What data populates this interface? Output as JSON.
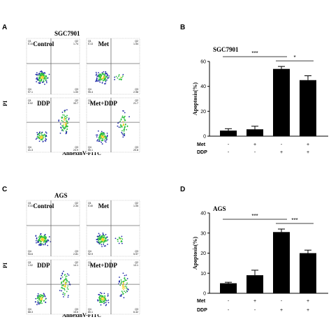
{
  "colors": {
    "bar": "#000000",
    "gate": "#6b6b6b",
    "dense": "#2bbf3e",
    "core": "#f2d22e",
    "sparse": "#1f2aa8"
  },
  "flow_panels": [
    {
      "letter": "A",
      "cell_line": "SGC7901",
      "xlabel": "AnnexinV-FITC",
      "ylabel": "PI",
      "plots": [
        {
          "title": "Control",
          "q1": "Q1",
          "q1v": "0.15",
          "q2": "Q2",
          "q2v": "1.74",
          "q4": "Q4",
          "q4v": "97.1",
          "q3": "Q3",
          "q3v": "1.00"
        },
        {
          "title": "Met",
          "q1": "Q1",
          "q1v": "0.13",
          "q2": "Q2",
          "q2v": "1.54",
          "q4": "Q4",
          "q4v": "95.4",
          "q3": "Q3",
          "q3v": "2.98"
        },
        {
          "title": "DDP",
          "q1": "Q1",
          "q1v": "0.02",
          "q2": "Q2",
          "q2v": "33.7",
          "q4": "Q4",
          "q4v": "41.3",
          "q3": "Q3",
          "q3v": "24.9"
        },
        {
          "title": "Met+DDP",
          "q1": "Q1",
          "q1v": "0.21",
          "q2": "Q2",
          "q2v": "21.7",
          "q4": "Q4",
          "q4v": "55.1",
          "q3": "Q3",
          "q3v": "20.8"
        }
      ]
    },
    {
      "letter": "C",
      "cell_line": "AGS",
      "xlabel": "AnnexinV-FITC",
      "ylabel": "PI",
      "plots": [
        {
          "title": "Control",
          "q1": "Q1",
          "q1v": "0.33",
          "q2": "Q2",
          "q2v": "2.34",
          "q4": "Q4",
          "q4v": "94.6",
          "q3": "Q3",
          "q3v": "2.81"
        },
        {
          "title": "Met",
          "q1": "Q1",
          "q1v": "0.40",
          "q2": "Q2",
          "q2v": "1.05",
          "q4": "Q4",
          "q4v": "92.9",
          "q3": "Q3",
          "q3v": "5.97"
        },
        {
          "title": "DDP",
          "q1": "Q1",
          "q1v": "1.02",
          "q2": "Q2",
          "q2v": "14.1",
          "q4": "Q4",
          "q4v": "68.3",
          "q3": "Q3",
          "q3v": "15.6"
        },
        {
          "title": "Met+DDP",
          "q1": "Q1",
          "q1v": "0.61",
          "q2": "Q2",
          "q2v": "13.1",
          "q4": "Q4",
          "q4v": "80.1",
          "q3": "Q3",
          "q3v": "6.42"
        }
      ]
    }
  ],
  "chart_data": [
    {
      "type": "bar",
      "panel": "B",
      "title": "SGC7901",
      "ylabel": "Apoptosis(%)",
      "ylim": [
        0,
        60
      ],
      "yticks": [
        0,
        20,
        40,
        60
      ],
      "values": [
        4.5,
        5.5,
        54,
        45
      ],
      "errors": [
        1.5,
        2.5,
        2,
        3.5
      ],
      "groups": [
        {
          "name": "Met",
          "marks": [
            "-",
            "+",
            "-",
            "+"
          ]
        },
        {
          "name": "DDP",
          "marks": [
            "-",
            "-",
            "+",
            "+"
          ]
        }
      ],
      "significance": [
        {
          "from": 0,
          "to": 2,
          "label": "***"
        },
        {
          "from": 2,
          "to": 3,
          "label": "*"
        }
      ]
    },
    {
      "type": "bar",
      "panel": "D",
      "title": "AGS",
      "ylabel": "Apoptosis(%)",
      "ylim": [
        0,
        40
      ],
      "yticks": [
        0,
        10,
        20,
        30,
        40
      ],
      "values": [
        5,
        9,
        30.5,
        20
      ],
      "errors": [
        0.5,
        2.5,
        1.5,
        1.5
      ],
      "groups": [
        {
          "name": "Met",
          "marks": [
            "-",
            "+",
            "-",
            "+"
          ]
        },
        {
          "name": "DDP",
          "marks": [
            "-",
            "-",
            "+",
            "+"
          ]
        }
      ],
      "significance": [
        {
          "from": 0,
          "to": 2,
          "label": "***"
        },
        {
          "from": 2,
          "to": 3,
          "label": "***"
        }
      ]
    }
  ]
}
